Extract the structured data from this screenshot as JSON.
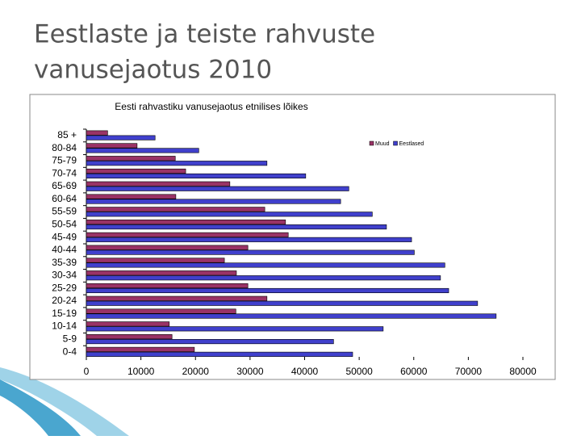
{
  "slide_title": "Eestlaste ja teiste rahvuste vanusejaotus 2010",
  "chart_data": {
    "type": "barh",
    "title": "Eesti rahvastiku vanusejaotus etnilises lõikes",
    "categories": [
      "85 +",
      "80-84",
      "75-79",
      "70-74",
      "65-69",
      "60-64",
      "55-59",
      "50-54",
      "45-49",
      "40-44",
      "35-39",
      "30-34",
      "25-29",
      "20-24",
      "15-19",
      "10-14",
      "5-9",
      "0-4"
    ],
    "series": [
      {
        "name": "Muud",
        "color": "#993366",
        "values": [
          3900,
          9300,
          16300,
          18200,
          26300,
          16400,
          32700,
          36500,
          37000,
          29600,
          25300,
          27500,
          29600,
          33100,
          27400,
          15200,
          15700,
          19800
        ]
      },
      {
        "name": "Eestlased",
        "color": "#4040cc",
        "values": [
          12600,
          20600,
          33100,
          40200,
          48100,
          46600,
          52400,
          55000,
          59600,
          60100,
          65700,
          64900,
          66400,
          71700,
          75100,
          54400,
          45300,
          48800
        ]
      }
    ],
    "xlim": [
      0,
      80000
    ],
    "xticks": [
      0,
      10000,
      20000,
      30000,
      40000,
      50000,
      60000,
      70000,
      80000
    ],
    "legend": "upper right"
  }
}
